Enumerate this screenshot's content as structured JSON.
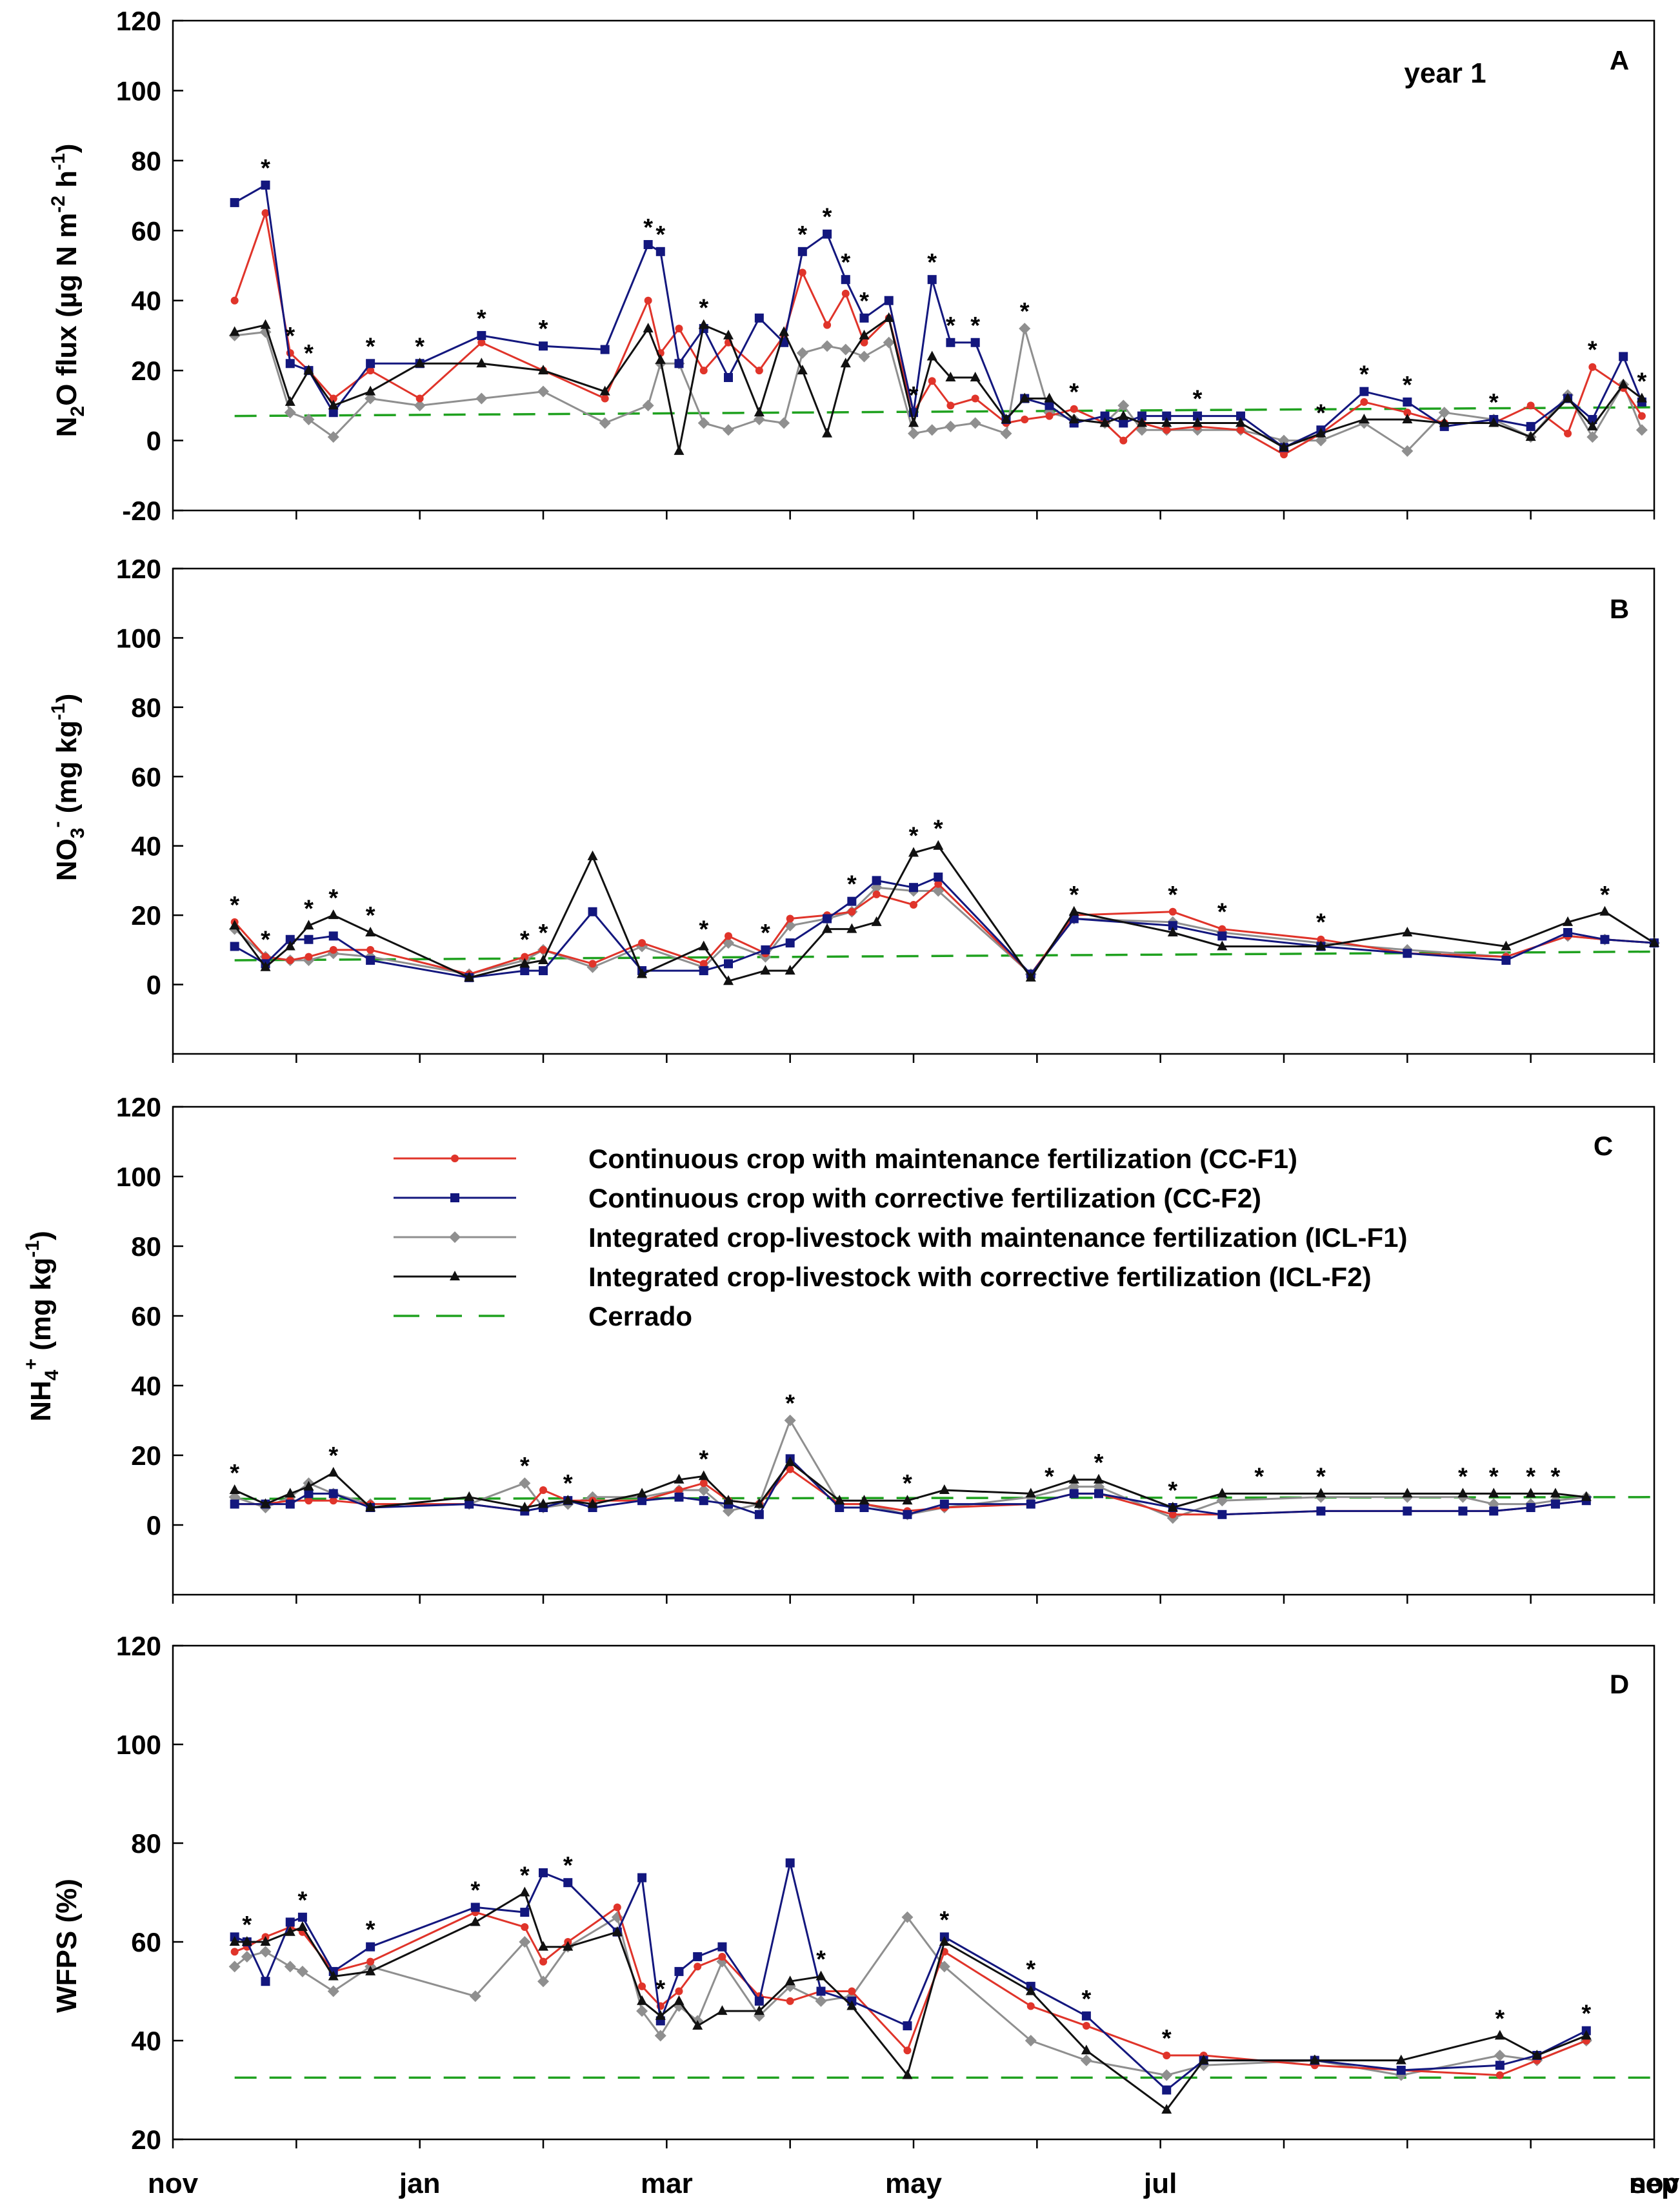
{
  "x_month_labels": [
    "nov",
    "jan",
    "mar",
    "may",
    "jul",
    "",
    "sep",
    "nov"
  ],
  "series_meta": [
    {
      "key": "ccf1",
      "name": "Continuous crop with maintenance fertilization (CC-F1)",
      "color": "#e0342a",
      "marker": "dot"
    },
    {
      "key": "ccf2",
      "name": "Continuous crop with corrective fertilization (CC-F2)",
      "color": "#13177e",
      "marker": "square"
    },
    {
      "key": "iclf1",
      "name": "Integrated crop-livestock with maintenance fertilization (ICL-F1)",
      "color": "#8f8f8f",
      "marker": "diamond"
    },
    {
      "key": "iclf2",
      "name": "Integrated crop-livestock with corrective fertilization (ICL-F2)",
      "color": "#111111",
      "marker": "triangle"
    },
    {
      "key": "cerrado",
      "name": "Cerrado",
      "color": "#1fa11f",
      "marker": "dash"
    }
  ],
  "chart_data": [
    {
      "panel": "A",
      "type": "line",
      "title": "",
      "annotation": "year 1",
      "ylabel": "N2O flux (µg N m-2 h-1)",
      "xlabel": "",
      "ylim": [
        -20,
        120
      ],
      "yticks": [
        -20,
        0,
        20,
        40,
        60,
        80,
        100,
        120
      ],
      "xlim": [
        0,
        12
      ],
      "x": [
        0.5,
        0.75,
        0.95,
        1.1,
        1.3,
        1.6,
        2.0,
        2.5,
        3.0,
        3.5,
        3.85,
        3.95,
        4.1,
        4.3,
        4.5,
        4.75,
        4.95,
        5.1,
        5.3,
        5.45,
        5.6,
        5.8,
        6.0,
        6.15,
        6.3,
        6.5,
        6.75,
        6.9,
        7.1,
        7.3,
        7.55,
        7.7,
        7.85,
        8.05,
        8.3,
        8.65,
        9.0,
        9.3,
        9.65,
        10.0,
        10.3,
        10.7,
        11.0,
        11.3,
        11.5,
        11.75,
        11.9
      ],
      "series": [
        {
          "name": "CC-F1",
          "values": [
            40,
            65,
            25,
            20,
            12,
            20,
            12,
            28,
            20,
            12,
            40,
            25,
            32,
            20,
            28,
            20,
            30,
            48,
            33,
            42,
            28,
            35,
            8,
            17,
            10,
            12,
            5,
            6,
            7,
            9,
            5,
            0,
            5,
            3,
            4,
            3,
            -4,
            2,
            11,
            8,
            5,
            5,
            10,
            2,
            21,
            15,
            7
          ]
        },
        {
          "name": "CC-F2",
          "values": [
            68,
            73,
            22,
            20,
            8,
            22,
            22,
            30,
            27,
            26,
            56,
            54,
            22,
            32,
            18,
            35,
            28,
            54,
            59,
            46,
            35,
            40,
            8,
            46,
            28,
            28,
            6,
            12,
            10,
            5,
            7,
            5,
            7,
            7,
            7,
            7,
            -2,
            3,
            14,
            11,
            4,
            6,
            4,
            12,
            6,
            24,
            11
          ]
        },
        {
          "name": "ICL-F1",
          "values": [
            30,
            31,
            8,
            6,
            1,
            12,
            10,
            12,
            14,
            5,
            10,
            22,
            22,
            5,
            3,
            6,
            5,
            25,
            27,
            26,
            24,
            28,
            2,
            3,
            4,
            5,
            2,
            32,
            8,
            6,
            5,
            10,
            3,
            3,
            3,
            3,
            0,
            0,
            5,
            -3,
            8,
            6,
            1,
            13,
            1,
            16,
            3
          ]
        },
        {
          "name": "ICL-F2",
          "values": [
            31,
            33,
            11,
            20,
            10,
            14,
            22,
            22,
            20,
            14,
            32,
            23,
            -3,
            33,
            30,
            8,
            31,
            20,
            2,
            22,
            30,
            35,
            5,
            24,
            18,
            18,
            6,
            12,
            12,
            6,
            5,
            7,
            5,
            5,
            5,
            5,
            -2,
            2,
            6,
            6,
            5,
            5,
            1,
            12,
            4,
            16,
            12
          ]
        }
      ],
      "cerrado_y": [
        7,
        9.5
      ],
      "significance_x": [
        0.75,
        0.95,
        1.1,
        1.6,
        2.0,
        2.5,
        3.0,
        3.85,
        3.95,
        4.3,
        5.1,
        5.3,
        5.45,
        5.6,
        6.0,
        6.15,
        6.3,
        6.5,
        6.9,
        7.3,
        8.3,
        9.3,
        9.65,
        10.0,
        10.7,
        11.5,
        11.9
      ]
    },
    {
      "panel": "B",
      "type": "line",
      "title": "",
      "ylabel": "NO3- (mg kg-1)",
      "xlabel": "",
      "ylim": [
        -20,
        120
      ],
      "yticks": [
        0,
        20,
        40,
        60,
        80,
        100,
        120
      ],
      "xlim": [
        0,
        12
      ],
      "x": [
        0.5,
        0.75,
        0.95,
        1.1,
        1.3,
        1.6,
        2.4,
        2.85,
        3.0,
        3.4,
        3.8,
        4.3,
        4.5,
        4.8,
        5.0,
        5.3,
        5.5,
        5.7,
        6.0,
        6.2,
        6.95,
        7.3,
        8.1,
        8.5,
        9.3,
        10.0,
        10.8,
        11.3,
        11.6,
        12.0
      ],
      "series": [
        {
          "name": "CC-F1",
          "values": [
            18,
            8,
            7,
            8,
            10,
            10,
            3,
            8,
            10,
            6,
            12,
            6,
            14,
            9,
            19,
            20,
            21,
            26,
            23,
            29,
            3,
            20,
            21,
            16,
            13,
            9,
            8,
            14,
            13,
            12
          ]
        },
        {
          "name": "CC-F2",
          "values": [
            11,
            6,
            13,
            13,
            14,
            7,
            2,
            4,
            4,
            21,
            4,
            4,
            6,
            10,
            12,
            19,
            24,
            30,
            28,
            31,
            3,
            19,
            17,
            14,
            11,
            9,
            7,
            15,
            13,
            12
          ]
        },
        {
          "name": "ICL-F1",
          "values": [
            16,
            8,
            7,
            7,
            9,
            8,
            3,
            7,
            10,
            5,
            11,
            5,
            12,
            8,
            17,
            19,
            21,
            28,
            27,
            27,
            3,
            19,
            18,
            15,
            12,
            10,
            8,
            14,
            13,
            12
          ]
        },
        {
          "name": "ICL-F2",
          "values": [
            17,
            5,
            11,
            17,
            20,
            15,
            2,
            6,
            7,
            37,
            3,
            11,
            1,
            4,
            4,
            16,
            16,
            18,
            38,
            40,
            2,
            21,
            15,
            11,
            11,
            15,
            11,
            18,
            21,
            12
          ]
        }
      ],
      "cerrado_y": [
        7,
        9.5
      ],
      "significance_x": [
        0.5,
        0.75,
        1.1,
        1.3,
        1.6,
        2.85,
        3.0,
        4.3,
        4.8,
        5.5,
        6.0,
        6.2,
        7.3,
        8.1,
        8.5,
        9.3,
        11.6
      ]
    },
    {
      "panel": "C",
      "type": "line",
      "title": "",
      "ylabel": "NH4+ (mg kg-1)",
      "xlabel": "",
      "ylim": [
        -20,
        120
      ],
      "yticks": [
        0,
        20,
        40,
        60,
        80,
        100,
        120
      ],
      "xlim": [
        0,
        12
      ],
      "x": [
        0.5,
        0.75,
        0.95,
        1.1,
        1.3,
        1.6,
        2.4,
        2.85,
        3.0,
        3.2,
        3.4,
        3.8,
        4.1,
        4.3,
        4.5,
        4.75,
        5.0,
        5.4,
        5.6,
        5.95,
        6.25,
        6.95,
        7.3,
        7.5,
        8.1,
        8.5,
        9.3,
        10.0,
        10.45,
        10.7,
        11.0,
        11.2,
        11.45
      ],
      "series": [
        {
          "name": "CC-F1",
          "values": [
            6,
            6,
            7,
            7,
            7,
            6,
            6,
            4,
            10,
            7,
            7,
            7,
            10,
            12,
            7,
            6,
            16,
            6,
            6,
            4,
            5,
            6,
            9,
            9,
            3,
            3,
            4,
            4,
            4,
            4,
            5,
            6,
            7
          ]
        },
        {
          "name": "CC-F2",
          "values": [
            6,
            6,
            6,
            9,
            9,
            5,
            6,
            4,
            5,
            7,
            5,
            7,
            8,
            7,
            6,
            3,
            19,
            5,
            5,
            3,
            6,
            6,
            9,
            9,
            5,
            3,
            4,
            4,
            4,
            4,
            5,
            6,
            7
          ]
        },
        {
          "name": "ICL-F1",
          "values": [
            8,
            5,
            8,
            12,
            9,
            6,
            6,
            12,
            5,
            6,
            8,
            8,
            10,
            10,
            4,
            6,
            30,
            6,
            6,
            3,
            5,
            8,
            11,
            11,
            2,
            7,
            8,
            8,
            8,
            6,
            6,
            7,
            8
          ]
        },
        {
          "name": "ICL-F2",
          "values": [
            10,
            6,
            9,
            11,
            15,
            5,
            8,
            5,
            6,
            7,
            6,
            9,
            13,
            14,
            7,
            6,
            18,
            7,
            7,
            7,
            10,
            9,
            13,
            13,
            5,
            9,
            9,
            9,
            9,
            9,
            9,
            9,
            8
          ]
        }
      ],
      "cerrado_y": [
        7.5,
        8
      ],
      "significance_x": [
        0.5,
        1.3,
        2.85,
        3.2,
        4.3,
        5.0,
        5.95,
        7.1,
        7.5,
        8.1,
        8.8,
        9.3,
        10.45,
        10.7,
        11.0,
        11.2
      ]
    },
    {
      "panel": "D",
      "type": "line",
      "title": "",
      "ylabel": "WFPS (%)",
      "xlabel": "",
      "ylim": [
        20,
        120
      ],
      "yticks": [
        20,
        40,
        60,
        80,
        100,
        120
      ],
      "xlim": [
        0,
        12
      ],
      "x": [
        0.5,
        0.6,
        0.75,
        0.95,
        1.05,
        1.3,
        1.6,
        2.45,
        2.85,
        3.0,
        3.2,
        3.6,
        3.8,
        3.95,
        4.1,
        4.25,
        4.45,
        4.75,
        5.0,
        5.25,
        5.5,
        5.95,
        6.25,
        6.95,
        7.4,
        8.05,
        8.35,
        9.25,
        9.95,
        10.75,
        11.05,
        11.45
      ],
      "series": [
        {
          "name": "CC-F1",
          "values": [
            58,
            59,
            61,
            63,
            62,
            54,
            56,
            66,
            63,
            56,
            60,
            67,
            51,
            47,
            50,
            55,
            57,
            49,
            48,
            50,
            50,
            38,
            58,
            47,
            43,
            37,
            37,
            35,
            34,
            33,
            36,
            40
          ]
        },
        {
          "name": "CC-F2",
          "values": [
            61,
            60,
            52,
            64,
            65,
            54,
            59,
            67,
            66,
            74,
            72,
            62,
            73,
            44,
            54,
            57,
            59,
            48,
            76,
            50,
            48,
            43,
            61,
            51,
            45,
            30,
            36,
            36,
            34,
            35,
            37,
            42
          ]
        },
        {
          "name": "ICL-F1",
          "values": [
            55,
            57,
            58,
            55,
            54,
            50,
            55,
            49,
            60,
            52,
            59,
            65,
            46,
            41,
            47,
            44,
            56,
            45,
            51,
            48,
            49,
            65,
            55,
            40,
            36,
            33,
            35,
            36,
            33,
            37,
            36,
            40
          ]
        },
        {
          "name": "ICL-F2",
          "values": [
            60,
            60,
            60,
            62,
            63,
            53,
            54,
            64,
            70,
            59,
            59,
            62,
            48,
            45,
            48,
            43,
            46,
            46,
            52,
            53,
            47,
            33,
            60,
            50,
            38,
            26,
            36,
            36,
            36,
            41,
            37,
            41
          ]
        }
      ],
      "cerrado_y": [
        32.5,
        32.5
      ],
      "significance_x": [
        0.6,
        1.05,
        1.6,
        2.45,
        2.85,
        3.2,
        3.95,
        5.25,
        6.25,
        6.95,
        7.4,
        8.05,
        10.75,
        11.45
      ]
    }
  ]
}
